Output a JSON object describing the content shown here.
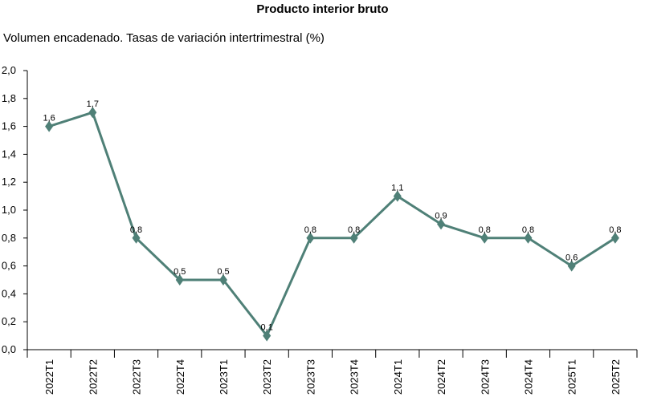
{
  "chart_data": {
    "type": "line",
    "title": "Producto interior bruto",
    "subtitle": "Volumen encadenado. Tasas de variación intertrimestral (%)",
    "categories": [
      "2022T1",
      "2022T2",
      "2022T3",
      "2022T4",
      "2023T1",
      "2023T2",
      "2023T3",
      "2023T4",
      "2024T1",
      "2024T2",
      "2024T3",
      "2024T4",
      "2025T1",
      "2025T2"
    ],
    "series": [
      {
        "values": [
          1.6,
          1.7,
          0.8,
          0.5,
          0.5,
          0.1,
          0.8,
          0.8,
          1.1,
          0.9,
          0.8,
          0.8,
          0.6,
          0.8
        ]
      }
    ],
    "data_labels": [
      "1,6",
      "1,7",
      "0,8",
      "0,5",
      "0,5",
      "0,1",
      "0,8",
      "0,8",
      "1,1",
      "0,9",
      "0,8",
      "0,8",
      "0,6",
      "0,8"
    ],
    "yticks": [
      0,
      0.2,
      0.4,
      0.6,
      0.8,
      1.0,
      1.2,
      1.4,
      1.6,
      1.8,
      2.0
    ],
    "ytick_labels": [
      "0,0",
      "0,2",
      "0,4",
      "0,6",
      "0,8",
      "1,0",
      "1,2",
      "1,4",
      "1,6",
      "1,8",
      "2,0"
    ],
    "ylim": [
      0,
      2.0
    ],
    "grid": false,
    "line_color": "#4f8077",
    "axis_color": "#000000"
  }
}
